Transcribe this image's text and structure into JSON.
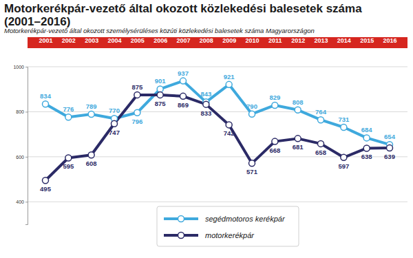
{
  "chart_data": {
    "type": "line",
    "title": "Motorkerékpár-vezető által okozott közlekedési balesetek száma (2001–2016)",
    "subtitle": "Motorkerékpár-vezető által okozott személysérüléses közúti közlekedési balesetek száma Magyarországon",
    "categories": [
      "2001",
      "2002",
      "2003",
      "2004",
      "2005",
      "2006",
      "2007",
      "2008",
      "2009",
      "2010",
      "2011",
      "2012",
      "2013",
      "2014",
      "2015",
      "2016"
    ],
    "series": [
      {
        "name": "segédmotoros kerékpár",
        "color": "#3fa9dd",
        "marker": "circle",
        "values": [
          834,
          776,
          789,
          770,
          796,
          901,
          937,
          843,
          921,
          790,
          829,
          808,
          764,
          731,
          684,
          654
        ]
      },
      {
        "name": "motorkerékpár",
        "color": "#2b2a66",
        "marker": "circle",
        "values": [
          495,
          595,
          608,
          747,
          875,
          875,
          869,
          833,
          742,
          571,
          668,
          681,
          658,
          597,
          638,
          639
        ]
      }
    ],
    "ylim": [
      300,
      1000
    ],
    "yticks": [
      400,
      600,
      800,
      1000
    ],
    "grid": true,
    "data_labels": true,
    "legend": "bottom"
  }
}
